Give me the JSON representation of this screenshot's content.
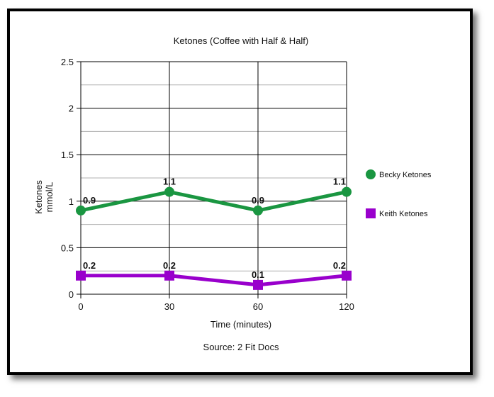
{
  "chart_data": {
    "type": "line",
    "title": "Ketones (Coffee with Half & Half)",
    "xlabel": "Time (minutes)",
    "ylabel": [
      "Ketones",
      "mmol/L"
    ],
    "source": "Source: 2 Fit Docs",
    "categories": [
      "0",
      "30",
      "60",
      "120"
    ],
    "ylim": [
      0,
      2.5
    ],
    "yticks": [
      "0",
      "0.5",
      "1",
      "1.5",
      "2",
      "2.5"
    ],
    "grid": true,
    "legend_position": "right",
    "series": [
      {
        "name": "Becky Ketones",
        "values": [
          0.9,
          1.1,
          0.9,
          1.1
        ],
        "labels": [
          "0.9",
          "1.1",
          "0.9",
          "1.1"
        ],
        "color": "#1a9641",
        "marker": "circle"
      },
      {
        "name": "Keith Ketones",
        "values": [
          0.2,
          0.2,
          0.1,
          0.2
        ],
        "labels": [
          "0.2",
          "0.2",
          "0.1",
          "0.2"
        ],
        "color": "#9900cc",
        "marker": "square"
      }
    ]
  }
}
